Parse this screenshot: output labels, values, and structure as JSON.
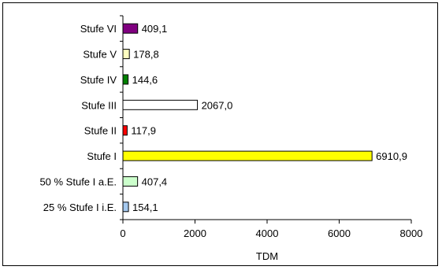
{
  "chart_data": {
    "type": "bar",
    "orientation": "horizontal",
    "categories": [
      "Stufe VI",
      "Stufe V",
      "Stufe IV",
      "Stufe III",
      "Stufe II",
      "Stufe I",
      "50 % Stufe I a.E.",
      "25 % Stufe I i.E."
    ],
    "values": [
      409.1,
      178.8,
      144.6,
      2067.0,
      117.9,
      6910.9,
      407.4,
      154.1
    ],
    "value_labels": [
      "409,1",
      "178,8",
      "144,6",
      "2067,0",
      "117,9",
      "6910,9",
      "407,4",
      "154,1"
    ],
    "colors": [
      "#800080",
      "#ffffc0",
      "#008000",
      "#ffffff",
      "#ff0000",
      "#ffff00",
      "#ccffcc",
      "#a6caf0"
    ],
    "xlabel": "TDM",
    "xlim": [
      0,
      8000
    ],
    "xticks": [
      0,
      2000,
      4000,
      6000,
      8000
    ],
    "tick_labels": [
      "0",
      "2000",
      "4000",
      "6000",
      "8000"
    ],
    "grid": false,
    "legend": "none"
  }
}
